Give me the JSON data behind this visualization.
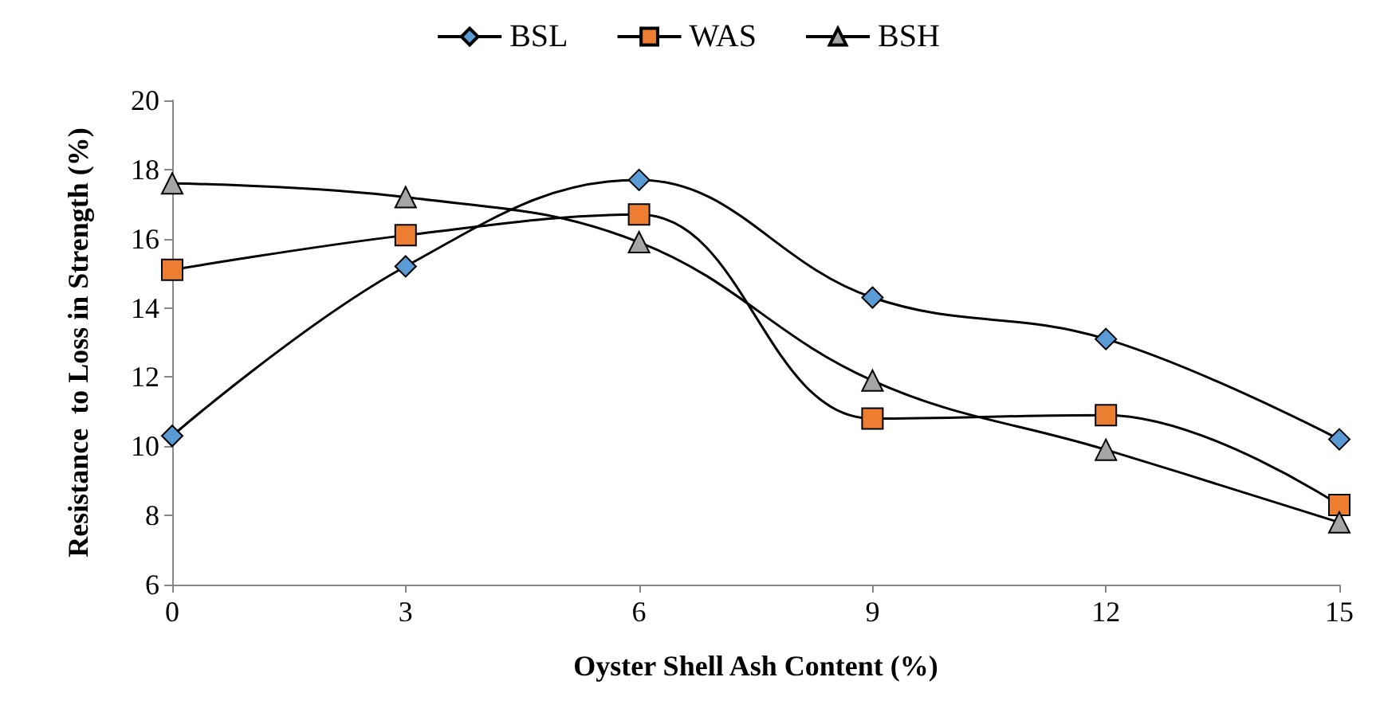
{
  "chart_data": {
    "type": "line",
    "xlabel": "Oyster Shell Ash Content (%)",
    "ylabel": "Resistance  to Loss in Strength (%)",
    "x": [
      0,
      3,
      6,
      9,
      12,
      15
    ],
    "series": [
      {
        "name": "BSL",
        "color": "#5b9bd5",
        "marker": "diamond",
        "values": [
          10.3,
          15.2,
          17.7,
          14.3,
          13.1,
          10.2
        ]
      },
      {
        "name": "WAS",
        "color": "#ed7d31",
        "marker": "square",
        "values": [
          15.1,
          16.1,
          16.7,
          10.8,
          10.9,
          8.3
        ]
      },
      {
        "name": "BSH",
        "color": "#a5a5a5",
        "marker": "triangle",
        "values": [
          17.6,
          17.2,
          15.9,
          11.9,
          9.9,
          7.8
        ]
      }
    ],
    "xlim": [
      0,
      15
    ],
    "xticks": [
      0,
      3,
      6,
      9,
      12,
      15
    ],
    "ylim": [
      6,
      20
    ],
    "yticks": [
      6,
      8,
      10,
      12,
      14,
      16,
      18,
      20
    ],
    "grid": false,
    "legend": "top",
    "line_style": "solid"
  }
}
